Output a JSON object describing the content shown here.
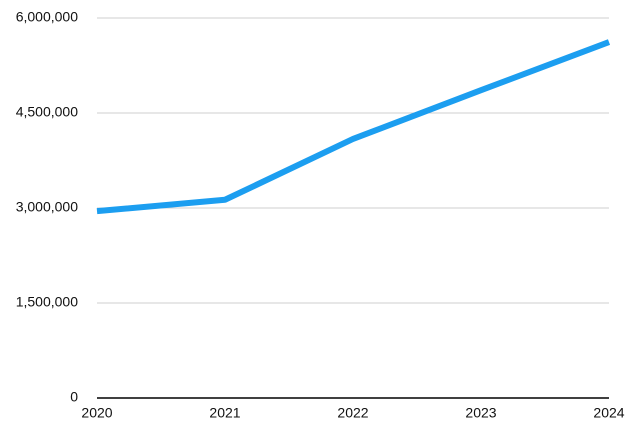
{
  "chart_data": {
    "type": "line",
    "x": [
      2020,
      2021,
      2022,
      2023,
      2024
    ],
    "series": [
      {
        "color": "#1c9ef0",
        "values": [
          2950000,
          3130000,
          4090000,
          4860000,
          5620000
        ]
      }
    ],
    "xlim": [
      2020,
      2024
    ],
    "xticks": [
      2020,
      2021,
      2022,
      2023,
      2024
    ],
    "ylim": [
      0,
      6000000
    ],
    "yticks": [
      0,
      {
        "value": 1500000,
        "label": "1,500,000"
      },
      {
        "value": 3000000,
        "label": "3,000,000"
      },
      {
        "value": 4500000,
        "label": "4,500,000"
      },
      {
        "value": 6000000,
        "label": "6,000,000"
      }
    ],
    "grid": true
  }
}
